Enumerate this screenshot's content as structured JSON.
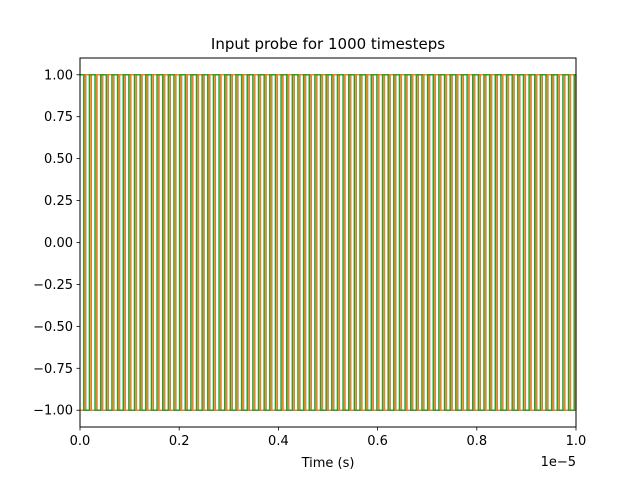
{
  "chart_data": {
    "type": "line",
    "title": "Input probe for 1000 timesteps",
    "xlabel": "Time (s)",
    "ylabel": "",
    "x_offset_label": "1e−5",
    "xlim": [
      0,
      1e-05
    ],
    "ylim": [
      -1.1,
      1.1
    ],
    "x_ticks": [
      0.0,
      0.2,
      0.4,
      0.6,
      0.8,
      1.0
    ],
    "x_tick_labels": [
      "0.0",
      "0.2",
      "0.4",
      "0.6",
      "0.8",
      "1.0"
    ],
    "y_ticks": [
      -1.0,
      -0.75,
      -0.5,
      -0.25,
      0.0,
      0.25,
      0.5,
      0.75,
      1.0
    ],
    "y_tick_labels": [
      "−1.00",
      "−0.75",
      "−0.50",
      "−0.25",
      "0.00",
      "0.25",
      "0.50",
      "0.75",
      "1.00"
    ],
    "grid": false,
    "legend": "none",
    "series": [
      {
        "color": "#1f77b4",
        "waveform": "square",
        "period": 2.273e-07,
        "phase": 0.0,
        "low": -1.0,
        "high": 1.0,
        "x_range": [
          0,
          1e-05
        ]
      },
      {
        "color": "#ff7f0e",
        "waveform": "square",
        "period": 2.273e-07,
        "phase": 1.1e-07,
        "low": -1.0,
        "high": 1.0,
        "x_range": [
          0,
          1e-05
        ]
      },
      {
        "color": "#2ca02c",
        "waveform": "square",
        "period": 2.273e-07,
        "phase": 1.9e-07,
        "low": -1.0,
        "high": 1.0,
        "x_range": [
          0,
          1e-05
        ]
      }
    ]
  }
}
